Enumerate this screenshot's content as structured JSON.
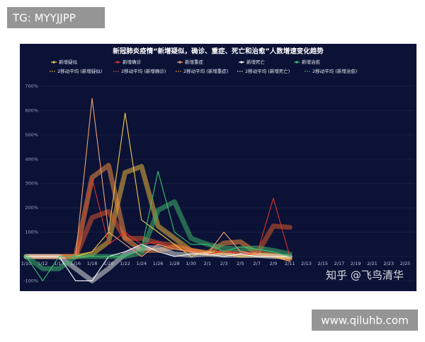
{
  "overlays": {
    "tag": "TG: MYYJJPP",
    "site": "www.qiluhb.com",
    "credit": "知乎 @飞鸟清华"
  },
  "chart_data": {
    "type": "line",
    "title": "新冠肺炎疫情“新增疑似，确诊、重症、死亡和治愈”人数增速变化趋势",
    "categories": [
      "1/10",
      "1/12",
      "1/14",
      "1/16",
      "1/18",
      "1/20",
      "1/22",
      "1/24",
      "1/26",
      "1/28",
      "1/30",
      "2/1",
      "2/3",
      "2/5",
      "2/7",
      "2/9",
      "2/11",
      "2/13",
      "2/15",
      "2/17",
      "2/19",
      "2/21",
      "2/23",
      "2/25"
    ],
    "ylim": [
      -100,
      700
    ],
    "yticks": [
      {
        "value": -100,
        "label": "-100%"
      },
      {
        "value": 0,
        "label": "0%"
      },
      {
        "value": 100,
        "label": "100%"
      },
      {
        "value": 200,
        "label": "200%"
      },
      {
        "value": 300,
        "label": "300%"
      },
      {
        "value": 400,
        "label": "400%"
      },
      {
        "value": 500,
        "label": "500%"
      },
      {
        "value": 600,
        "label": "600%"
      },
      {
        "value": 700,
        "label": "700%"
      }
    ],
    "grid": true,
    "series": [
      {
        "name": "新增疑似",
        "color": "#f2c94c",
        "values": [
          0,
          0,
          0,
          0,
          20,
          100,
          590,
          150,
          100,
          50,
          0,
          20,
          10,
          0,
          10,
          0,
          -10,
          null,
          null,
          null,
          null,
          null,
          null,
          null
        ]
      },
      {
        "name": "新增确诊",
        "color": "#e0302a",
        "values": [
          0,
          0,
          0,
          0,
          320,
          50,
          100,
          50,
          60,
          30,
          20,
          10,
          20,
          10,
          10,
          240,
          0,
          null,
          null,
          null,
          null,
          null,
          null,
          null
        ]
      },
      {
        "name": "新增重症",
        "color": "#f0a070",
        "values": [
          0,
          0,
          0,
          0,
          650,
          100,
          50,
          0,
          50,
          30,
          20,
          10,
          100,
          20,
          10,
          0,
          -20,
          null,
          null,
          null,
          null,
          null,
          null,
          null
        ]
      },
      {
        "name": "新增死亡",
        "color": "#ffffff",
        "values": [
          0,
          0,
          0,
          -100,
          -100,
          0,
          20,
          50,
          20,
          0,
          10,
          10,
          0,
          10,
          0,
          0,
          0,
          null,
          null,
          null,
          null,
          null,
          null,
          null
        ]
      },
      {
        "name": "新增治愈",
        "color": "#3fbf6f",
        "values": [
          0,
          -100,
          0,
          0,
          0,
          0,
          0,
          30,
          350,
          100,
          50,
          50,
          20,
          40,
          30,
          20,
          0,
          null,
          null,
          null,
          null,
          null,
          null,
          null
        ]
      },
      {
        "name": "2移动平均 (新增疑似)",
        "color": "#e8b23a",
        "moving_average": true,
        "values": [
          0,
          0,
          0,
          0,
          10,
          60,
          345,
          370,
          125,
          75,
          25,
          10,
          15,
          5,
          5,
          5,
          -5,
          null,
          null,
          null,
          null,
          null,
          null,
          null
        ]
      },
      {
        "name": "2移动平均 (新增确诊)",
        "color": "#d9542b",
        "moving_average": true,
        "values": [
          0,
          0,
          0,
          0,
          160,
          185,
          75,
          75,
          55,
          45,
          25,
          15,
          15,
          15,
          10,
          125,
          120,
          null,
          null,
          null,
          null,
          null,
          null,
          null
        ]
      },
      {
        "name": "2移动平均 (新增重症)",
        "color": "#f08a3c",
        "moving_average": true,
        "values": [
          0,
          0,
          0,
          0,
          325,
          375,
          75,
          25,
          25,
          40,
          25,
          15,
          55,
          60,
          15,
          5,
          -10,
          null,
          null,
          null,
          null,
          null,
          null,
          null
        ]
      },
      {
        "name": "2移动平均 (新增死亡)",
        "color": "#d8d8d8",
        "moving_average": true,
        "values": [
          0,
          0,
          0,
          -50,
          -100,
          -50,
          10,
          35,
          35,
          10,
          5,
          10,
          5,
          5,
          5,
          0,
          0,
          null,
          null,
          null,
          null,
          null,
          null,
          null
        ]
      },
      {
        "name": "2移动平均 (新增治愈)",
        "color": "#3fae6a",
        "moving_average": true,
        "values": [
          0,
          -50,
          -50,
          0,
          0,
          0,
          0,
          15,
          190,
          225,
          75,
          50,
          35,
          30,
          35,
          25,
          10,
          null,
          null,
          null,
          null,
          null,
          null,
          null
        ]
      }
    ]
  }
}
